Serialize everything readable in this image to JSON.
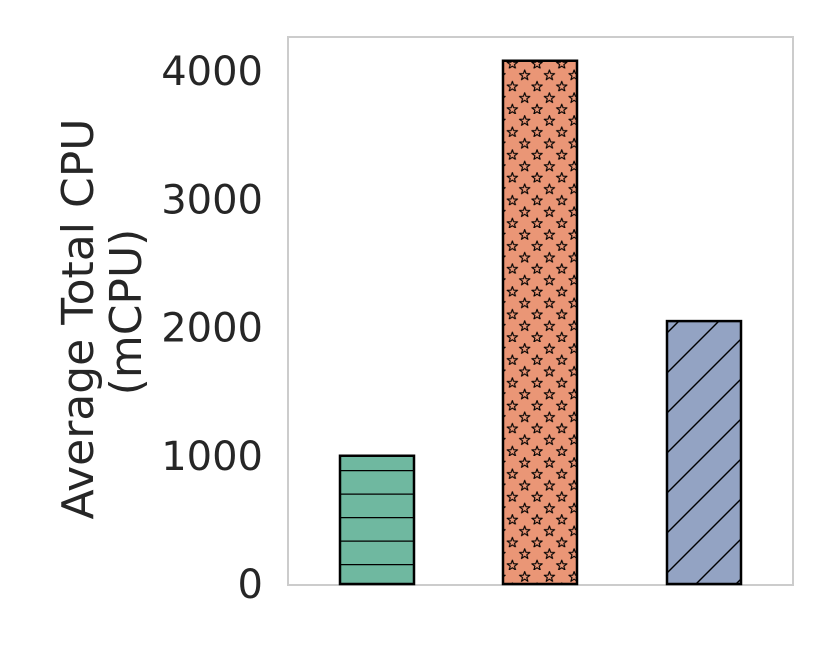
{
  "chart_data": {
    "type": "bar",
    "categories": [
      "",
      "",
      ""
    ],
    "values": [
      1000,
      4080,
      2050
    ],
    "ylabel_lines": [
      "Average Total CPU",
      "(mCPU)"
    ],
    "yticks": [
      0,
      1000,
      2000,
      3000,
      4000
    ],
    "ytick_labels": [
      "0",
      "1000",
      "2000",
      "3000",
      "4000"
    ],
    "ylim": [
      0,
      4300
    ],
    "grid": false,
    "colors": [
      "#6fb8a0",
      "#ea9676",
      "#93a3c3"
    ],
    "hatches": [
      "horizontal",
      "stars",
      "diagonal"
    ]
  }
}
